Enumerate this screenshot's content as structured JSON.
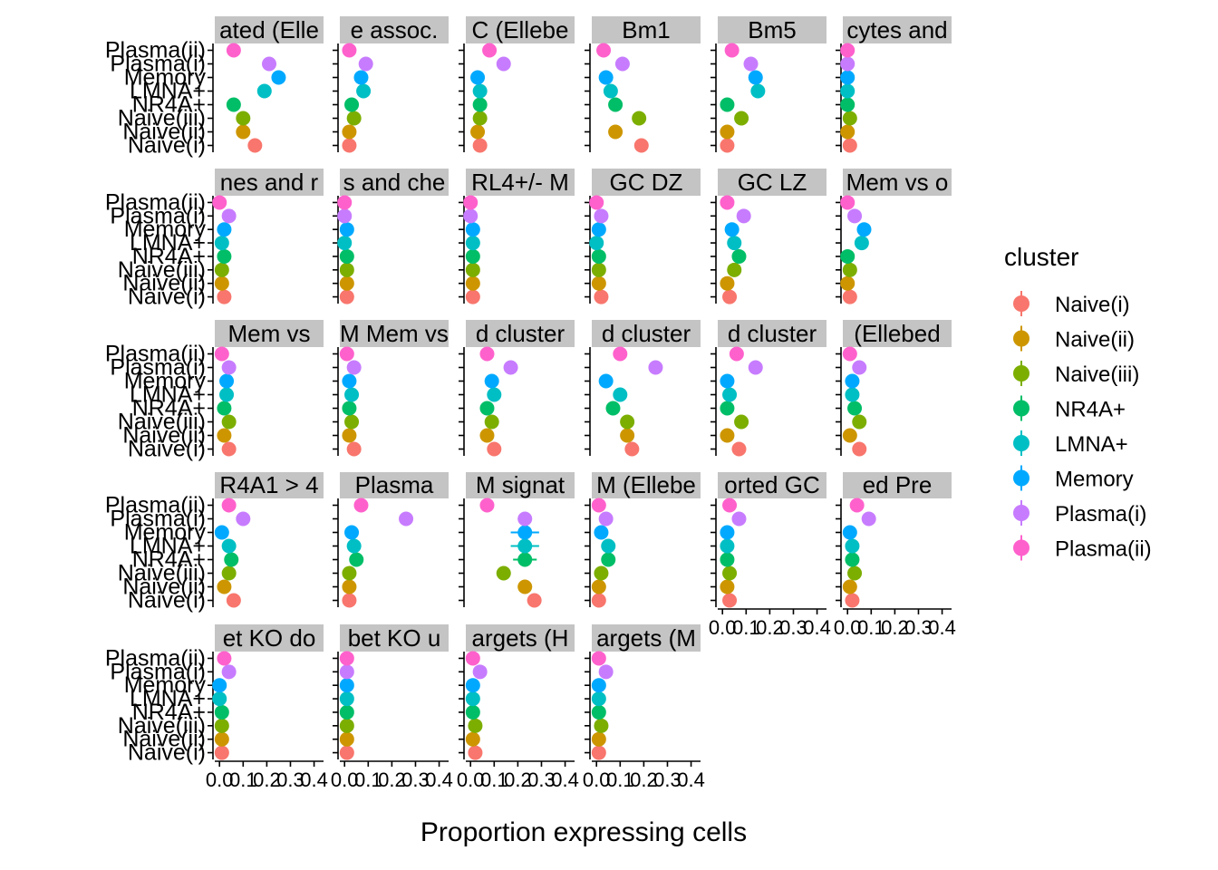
{
  "chart_data": {
    "type": "scatter",
    "xlabel": "Proportion expressing cells",
    "ylabel": "",
    "xlim": [
      -0.02,
      0.44
    ],
    "x_ticks": [
      "0.0",
      "0.1",
      "0.2",
      "0.3",
      "0.4"
    ],
    "x_tick_values": [
      0,
      0.1,
      0.2,
      0.3,
      0.4
    ],
    "grid": false,
    "legend_position": "right",
    "categories": [
      "Naive(i)",
      "Naive(ii)",
      "Naive(iii)",
      "NR4A+",
      "LMNA+",
      "Memory",
      "Plasma(i)",
      "Plasma(ii)"
    ],
    "y_tick_labels": [
      "Plasma(ii)",
      "Plasma(i)",
      "Memory",
      "LMNA+",
      "NR4A+",
      "Naive(iii)",
      "Naive(ii)",
      "Naive(i)"
    ],
    "legend": {
      "title": "cluster",
      "entries": [
        {
          "label": "Naive(i)",
          "color": "#F8766D"
        },
        {
          "label": "Naive(ii)",
          "color": "#CD9600"
        },
        {
          "label": "Naive(iii)",
          "color": "#7CAE00"
        },
        {
          "label": "NR4A+",
          "color": "#00BE67"
        },
        {
          "label": "LMNA+",
          "color": "#00BFC4"
        },
        {
          "label": "Memory",
          "color": "#00A9FF"
        },
        {
          "label": "Plasma(i)",
          "color": "#C77CFF"
        },
        {
          "label": "Plasma(ii)",
          "color": "#FF61CC"
        }
      ]
    },
    "facets": [
      {
        "strip": "ated (Elle",
        "values": [
          0.15,
          0.1,
          0.1,
          0.06,
          0.19,
          0.25,
          0.21,
          0.06
        ]
      },
      {
        "strip": "e assoc.",
        "values": [
          0.02,
          0.02,
          0.04,
          0.03,
          0.08,
          0.07,
          0.09,
          0.02
        ]
      },
      {
        "strip": "C (Ellebe",
        "values": [
          0.04,
          0.03,
          0.04,
          0.04,
          0.04,
          0.03,
          0.14,
          0.08
        ]
      },
      {
        "strip": "Bm1",
        "values": [
          0.19,
          0.08,
          0.18,
          0.08,
          0.06,
          0.04,
          0.11,
          0.03
        ]
      },
      {
        "strip": "Bm5",
        "values": [
          0.02,
          0.02,
          0.08,
          0.02,
          0.15,
          0.14,
          0.12,
          0.04
        ]
      },
      {
        "strip": "cytes and",
        "values": [
          0.01,
          0.0,
          0.01,
          0.0,
          0.0,
          0.0,
          0.0,
          0.0
        ]
      },
      {
        "strip": "nes and r",
        "values": [
          0.02,
          0.01,
          0.01,
          0.02,
          0.01,
          0.02,
          0.04,
          0.0
        ]
      },
      {
        "strip": "s and che",
        "values": [
          0.01,
          0.01,
          0.01,
          0.01,
          0.0,
          0.01,
          0.0,
          0.0
        ]
      },
      {
        "strip": "RL4+/- M",
        "values": [
          0.01,
          0.01,
          0.01,
          0.01,
          0.01,
          0.01,
          0.0,
          0.0
        ]
      },
      {
        "strip": "GC DZ",
        "values": [
          0.02,
          0.01,
          0.01,
          0.01,
          0.0,
          0.01,
          0.02,
          0.0
        ]
      },
      {
        "strip": "GC LZ",
        "values": [
          0.03,
          0.02,
          0.05,
          0.07,
          0.05,
          0.04,
          0.09,
          0.02
        ]
      },
      {
        "strip": "Mem vs o",
        "values": [
          0.01,
          0.0,
          0.01,
          0.0,
          0.06,
          0.07,
          0.03,
          0.0
        ]
      },
      {
        "strip": "Mem vs",
        "values": [
          0.04,
          0.02,
          0.04,
          0.02,
          0.03,
          0.03,
          0.04,
          0.01
        ]
      },
      {
        "strip": "M Mem vs",
        "values": [
          0.04,
          0.02,
          0.03,
          0.02,
          0.03,
          0.02,
          0.04,
          0.01
        ]
      },
      {
        "strip": "d cluster",
        "values": [
          0.1,
          0.07,
          0.09,
          0.07,
          0.1,
          0.09,
          0.17,
          0.07
        ]
      },
      {
        "strip": "d cluster",
        "values": [
          0.15,
          0.13,
          0.13,
          0.07,
          0.1,
          0.04,
          0.25,
          0.1
        ]
      },
      {
        "strip": "d cluster",
        "values": [
          0.07,
          0.02,
          0.08,
          0.02,
          0.03,
          0.02,
          0.14,
          0.06
        ]
      },
      {
        "strip": "(Ellebed",
        "values": [
          0.05,
          0.01,
          0.05,
          0.03,
          0.02,
          0.02,
          0.05,
          0.01
        ]
      },
      {
        "strip": "R4A1 > 4",
        "values": [
          0.06,
          0.02,
          0.04,
          0.05,
          0.04,
          0.01,
          0.1,
          0.04
        ]
      },
      {
        "strip": "Plasma",
        "values": [
          0.02,
          0.02,
          0.02,
          0.05,
          0.04,
          0.03,
          0.26,
          0.07
        ]
      },
      {
        "strip": "M signat",
        "values": [
          0.27,
          0.23,
          0.14,
          0.23,
          0.23,
          0.23,
          0.23,
          0.07
        ],
        "error": [
          0.03,
          0.03,
          0.03,
          0.05,
          0.06,
          0.06,
          0.03,
          0.0
        ]
      },
      {
        "strip": "M (Ellebe",
        "values": [
          0.01,
          0.01,
          0.02,
          0.05,
          0.05,
          0.02,
          0.04,
          0.01
        ]
      },
      {
        "strip": "orted  GC",
        "values": [
          0.03,
          0.02,
          0.03,
          0.02,
          0.02,
          0.02,
          0.07,
          0.03
        ]
      },
      {
        "strip": "ed  Pre",
        "values": [
          0.02,
          0.01,
          0.03,
          0.02,
          0.02,
          0.01,
          0.09,
          0.04
        ]
      },
      {
        "strip": "et KO do",
        "values": [
          0.01,
          0.01,
          0.01,
          0.01,
          0.0,
          0.0,
          0.04,
          0.02
        ]
      },
      {
        "strip": "bet KO u",
        "values": [
          0.01,
          0.01,
          0.01,
          0.01,
          0.01,
          0.01,
          0.01,
          0.01
        ]
      },
      {
        "strip": "argets (H",
        "values": [
          0.02,
          0.01,
          0.02,
          0.01,
          0.01,
          0.01,
          0.04,
          0.01
        ]
      },
      {
        "strip": "argets (M",
        "values": [
          0.01,
          0.01,
          0.02,
          0.01,
          0.01,
          0.01,
          0.04,
          0.01
        ]
      }
    ]
  }
}
